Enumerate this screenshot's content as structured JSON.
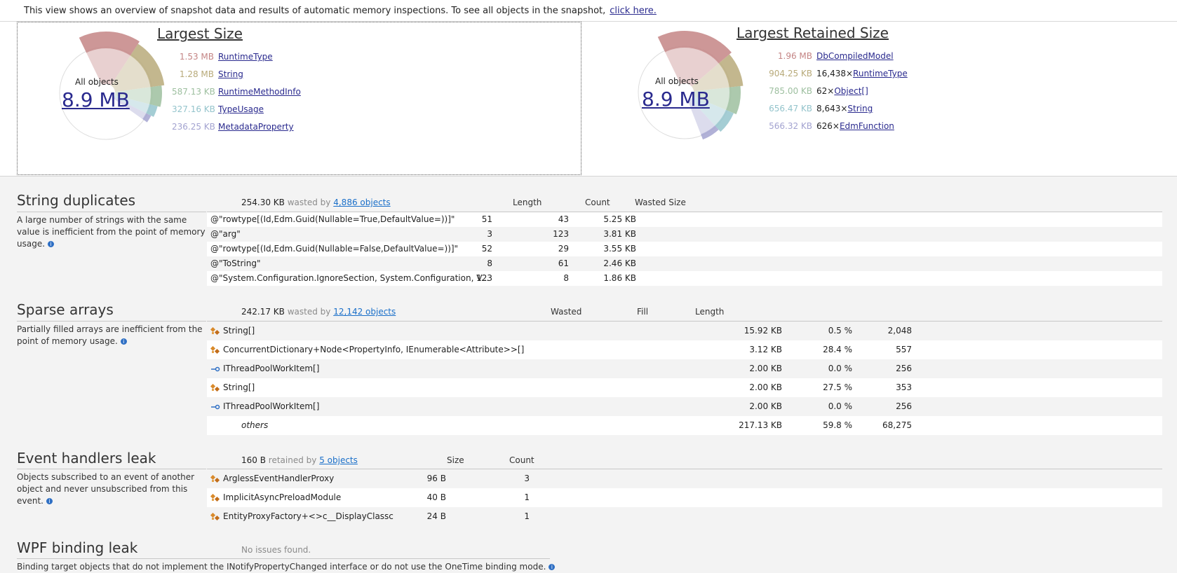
{
  "info_bar": {
    "text": "This view shows an overview of snapshot data and results of automatic memory inspections. To see all objects in the snapshot,",
    "link": "click here."
  },
  "largest_size": {
    "title": "Largest Size",
    "all_objects_label": "All objects",
    "total": "8.9 MB",
    "items": [
      {
        "size": "1.53 MB",
        "name": "RuntimeType",
        "color": "#c48585"
      },
      {
        "size": "1.28 MB",
        "name": "String",
        "color": "#b8aa7a"
      },
      {
        "size": "587.13 KB",
        "name": "RuntimeMethodInfo",
        "color": "#9dbf9f"
      },
      {
        "size": "327.16 KB",
        "name": "TypeUsage",
        "color": "#94c4cc"
      },
      {
        "size": "236.25 KB",
        "name": "MetadataProperty",
        "color": "#a3a3d0"
      }
    ]
  },
  "largest_retained": {
    "title": "Largest Retained Size",
    "all_objects_label": "All objects",
    "total": "8.9 MB",
    "items": [
      {
        "size": "1.96 MB",
        "count": "",
        "name": "DbCompiledModel",
        "color": "#c48585"
      },
      {
        "size": "904.25 KB",
        "count": "16,438×",
        "name": "RuntimeType",
        "color": "#b8aa7a"
      },
      {
        "size": "785.00 KB",
        "count": "62×",
        "name": "Object[]",
        "color": "#9dbf9f"
      },
      {
        "size": "656.47 KB",
        "count": "8,643×",
        "name": "String",
        "color": "#94c4cc"
      },
      {
        "size": "566.32 KB",
        "count": "626×",
        "name": "EdmFunction",
        "color": "#a3a3d0"
      }
    ]
  },
  "string_duplicates": {
    "title": "String duplicates",
    "description": "A large number of strings with the same value is inefficient from the point of memory usage.",
    "summary_amount": "254.30 KB",
    "summary_word": "wasted by",
    "summary_link": "4,886 objects",
    "headers": {
      "length": "Length",
      "count": "Count",
      "wasted": "Wasted Size"
    },
    "rows": [
      {
        "value": "@\"rowtype[(Id,Edm.Guid(Nullable=True,DefaultValue=))]\"",
        "length": "51",
        "count": "43",
        "wasted": "5.25 KB"
      },
      {
        "value": "@\"arg\"",
        "length": "3",
        "count": "123",
        "wasted": "3.81 KB"
      },
      {
        "value": "@\"rowtype[(Id,Edm.Guid(Nullable=False,DefaultValue=))]\"",
        "length": "52",
        "count": "29",
        "wasted": "3.55 KB"
      },
      {
        "value": "@\"ToString\"",
        "length": "8",
        "count": "61",
        "wasted": "2.46 KB"
      },
      {
        "value": "@\"System.Configuration.IgnoreSection, System.Configuration, V...",
        "length": "123",
        "count": "8",
        "wasted": "1.86 KB"
      }
    ]
  },
  "sparse_arrays": {
    "title": "Sparse arrays",
    "description": "Partially filled arrays are inefficient from the point of memory usage.",
    "summary_amount": "242.17 KB",
    "summary_word": "wasted by",
    "summary_link": "12,142 objects",
    "headers": {
      "wasted": "Wasted",
      "fill": "Fill",
      "length": "Length"
    },
    "rows": [
      {
        "name": "String[]",
        "wasted": "15.92 KB",
        "fill": "0.5 %",
        "length": "2,048",
        "icon": "class-icon"
      },
      {
        "name": "ConcurrentDictionary+Node<PropertyInfo, IEnumerable<Attribute>>[]",
        "wasted": "3.12 KB",
        "fill": "28.4 %",
        "length": "557",
        "icon": "class-icon"
      },
      {
        "name": "IThreadPoolWorkItem[]",
        "wasted": "2.00 KB",
        "fill": "0.0 %",
        "length": "256",
        "icon": "interface-icon"
      },
      {
        "name": "String[]",
        "wasted": "2.00 KB",
        "fill": "27.5 %",
        "length": "353",
        "icon": "class-icon"
      },
      {
        "name": "IThreadPoolWorkItem[]",
        "wasted": "2.00 KB",
        "fill": "0.0 %",
        "length": "256",
        "icon": "interface-icon"
      }
    ],
    "others": {
      "name": "others",
      "wasted": "217.13 KB",
      "fill": "59.8 %",
      "length": "68,275"
    }
  },
  "event_handlers": {
    "title": "Event handlers leak",
    "description": "Objects subscribed to an event of another object and never unsubscribed from this event.",
    "summary_amount": "160 B",
    "summary_word": "retained by",
    "summary_link": "5 objects",
    "headers": {
      "size": "Size",
      "count": "Count"
    },
    "rows": [
      {
        "name": "ArglessEventHandlerProxy",
        "size": "96 B",
        "count": "3"
      },
      {
        "name": "ImplicitAsyncPreloadModule",
        "size": "40 B",
        "count": "1"
      },
      {
        "name": "EntityProxyFactory+<>c__DisplayClassc",
        "size": "24 B",
        "count": "1"
      }
    ]
  },
  "wpf_binding": {
    "title": "WPF binding leak",
    "status": "No issues found.",
    "description": "Binding target objects that do not implement the INotifyPropertyChanged interface or do not use the OneTime binding mode."
  }
}
